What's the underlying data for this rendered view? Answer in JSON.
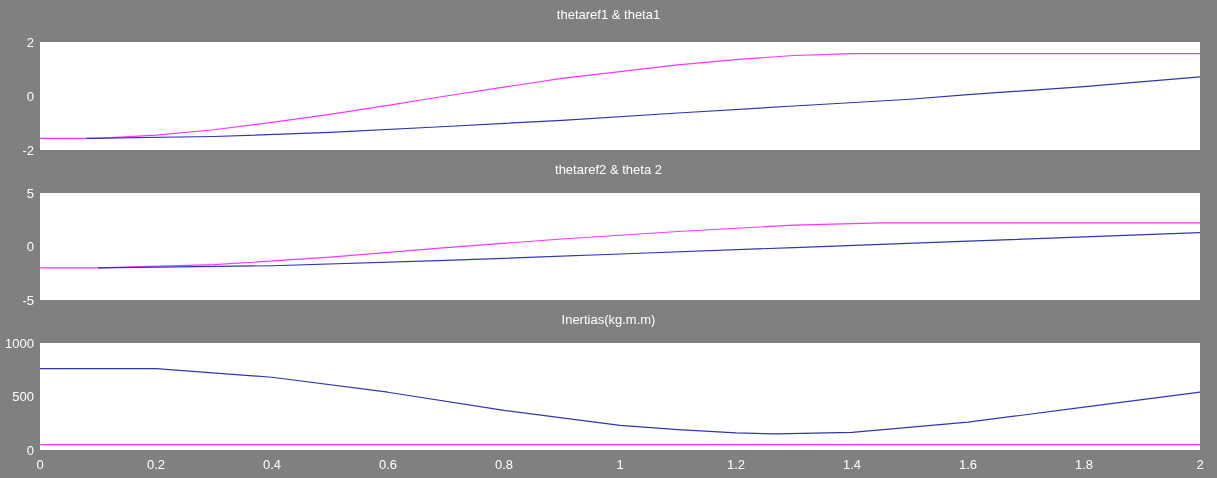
{
  "chart_data": [
    {
      "type": "line",
      "title": "thetaref1 & theta1",
      "xlim": [
        0,
        2
      ],
      "ylim": [
        -2,
        2
      ],
      "yticks": [
        -2,
        0,
        2
      ],
      "marker": "none",
      "tick_labels": "y",
      "series": [
        {
          "color": "#ff33ff",
          "x": [
            0,
            0.1,
            0.2,
            0.3,
            0.4,
            0.5,
            0.6,
            0.7,
            0.8,
            0.9,
            1.0,
            1.1,
            1.2,
            1.3,
            1.4,
            1.5,
            2.0
          ],
          "values": [
            -1.57,
            -1.57,
            -1.45,
            -1.25,
            -0.98,
            -0.68,
            -0.35,
            0,
            0.33,
            0.65,
            0.9,
            1.15,
            1.35,
            1.5,
            1.57,
            1.57,
            1.57
          ]
        },
        {
          "color": "#3333b3",
          "x": [
            0.08,
            0.3,
            0.5,
            0.7,
            0.9,
            1.1,
            1.3,
            1.5,
            1.6,
            1.8,
            2.0
          ],
          "values": [
            -1.57,
            -1.5,
            -1.35,
            -1.13,
            -0.9,
            -0.63,
            -0.37,
            -0.12,
            0.05,
            0.35,
            0.71
          ]
        }
      ]
    },
    {
      "type": "line",
      "title": "thetaref2 & theta 2",
      "xlim": [
        0,
        2
      ],
      "ylim": [
        -5,
        5
      ],
      "yticks": [
        -5,
        0,
        5
      ],
      "marker": "none",
      "tick_labels": "y",
      "series": [
        {
          "color": "#ff33ff",
          "x": [
            0,
            0.1,
            0.3,
            0.5,
            0.7,
            0.9,
            1.1,
            1.3,
            1.45,
            2.0
          ],
          "values": [
            -2.0,
            -2.0,
            -1.7,
            -1.0,
            -0.1,
            0.7,
            1.4,
            2.0,
            2.2,
            2.2
          ]
        },
        {
          "color": "#3333b3",
          "x": [
            0.1,
            0.4,
            0.7,
            1.0,
            1.3,
            1.6,
            2.0
          ],
          "values": [
            -2.0,
            -1.8,
            -1.3,
            -0.7,
            -0.1,
            0.5,
            1.3
          ]
        }
      ]
    },
    {
      "type": "line",
      "title": "Inertias(kg.m.m)",
      "xlim": [
        0,
        2
      ],
      "xticks": [
        0,
        0.2,
        0.4,
        0.6,
        0.8,
        1,
        1.2,
        1.4,
        1.6,
        1.8,
        2
      ],
      "ylim": [
        0,
        1000
      ],
      "yticks": [
        0,
        500,
        1000
      ],
      "marker": "none",
      "series": [
        {
          "color": "#3333b3",
          "x": [
            0,
            0.2,
            0.4,
            0.6,
            0.8,
            1.0,
            1.1,
            1.2,
            1.27,
            1.4,
            1.6,
            1.8,
            2.0
          ],
          "values": [
            760,
            760,
            680,
            540,
            370,
            230,
            190,
            160,
            150,
            165,
            260,
            400,
            540
          ]
        },
        {
          "color": "#ff33ff",
          "x": [
            0,
            2
          ],
          "values": [
            50,
            50
          ]
        }
      ]
    }
  ]
}
